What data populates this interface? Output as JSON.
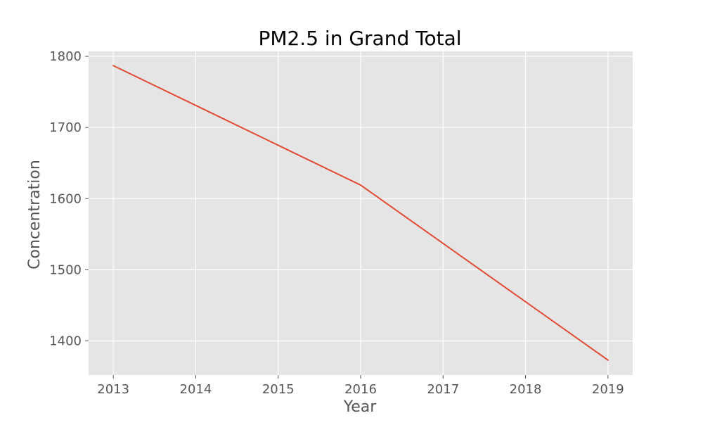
{
  "chart_data": {
    "type": "line",
    "title": "PM2.5 in Grand Total",
    "xlabel": "Year",
    "ylabel": "Concentration",
    "x": [
      2013,
      2014,
      2015,
      2016,
      2017,
      2018,
      2019
    ],
    "series": [
      {
        "values": [
          1787,
          1731,
          1675,
          1619,
          1537,
          1455,
          1373
        ]
      }
    ],
    "xlim": [
      2012.7,
      2019.3
    ],
    "ylim": [
      1352,
      1807
    ],
    "xticks": [
      2013,
      2014,
      2015,
      2016,
      2017,
      2018,
      2019
    ],
    "yticks": [
      1400,
      1500,
      1600,
      1700,
      1800
    ],
    "grid": true,
    "colors": {
      "line": "#E24A33",
      "plot_background": "#E5E5E5",
      "grid": "#FFFFFF"
    }
  }
}
